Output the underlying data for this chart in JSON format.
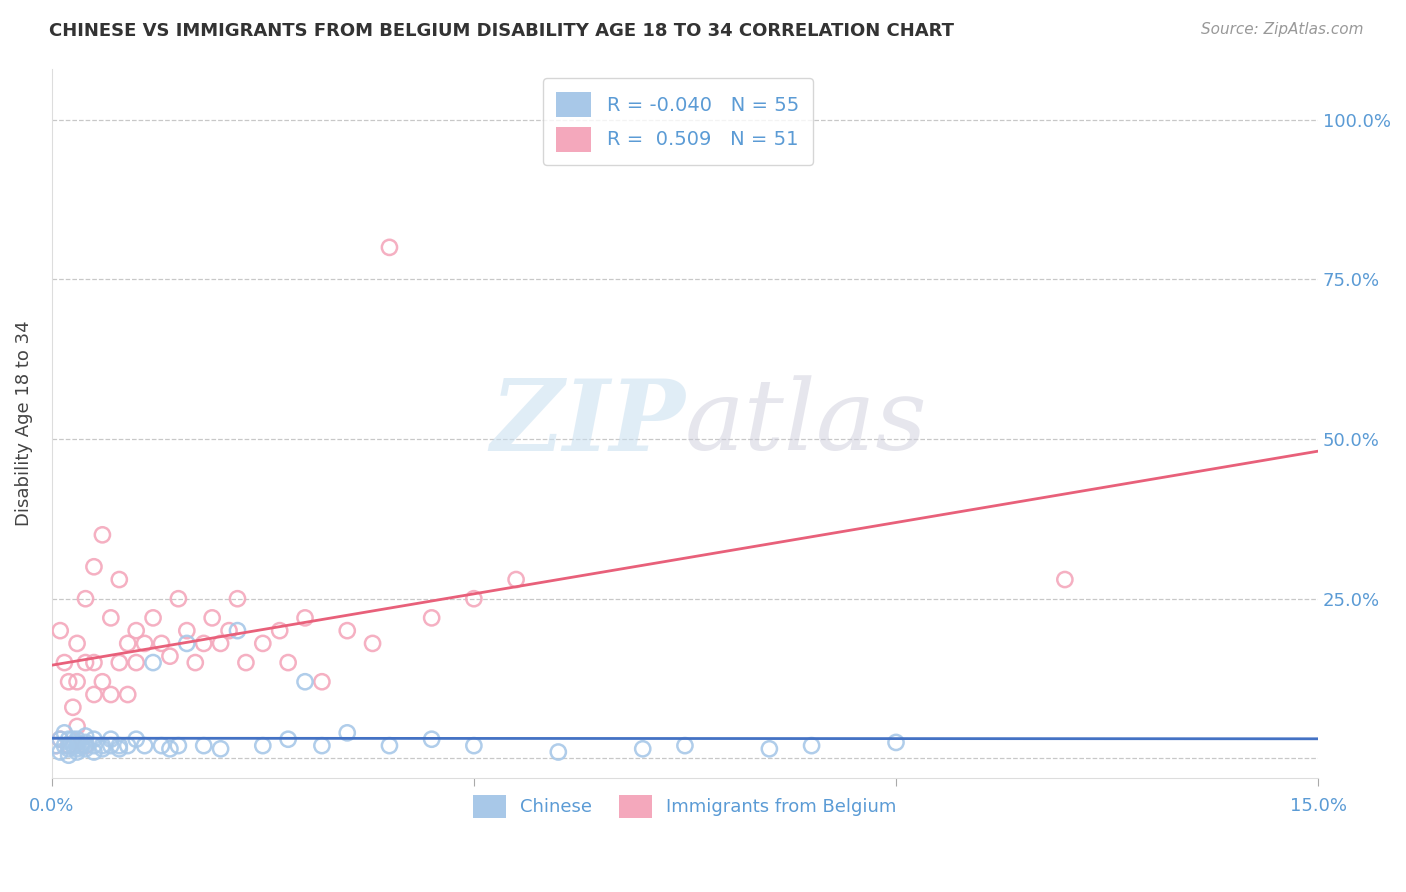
{
  "title": "CHINESE VS IMMIGRANTS FROM BELGIUM DISABILITY AGE 18 TO 34 CORRELATION CHART",
  "source": "Source: ZipAtlas.com",
  "ylabel": "Disability Age 18 to 34",
  "chinese_color": "#a8c8e8",
  "belgium_color": "#f4a8bc",
  "chinese_line_color": "#4472c4",
  "belgium_line_color": "#e8607a",
  "chinese_R": -0.04,
  "chinese_N": 55,
  "belgium_R": 0.509,
  "belgium_N": 51,
  "watermark_zip": "ZIP",
  "watermark_atlas": "atlas",
  "legend_chinese_label": "Chinese",
  "legend_belgium_label": "Immigrants from Belgium",
  "xmin": 0.0,
  "xmax": 0.15,
  "ymin": -0.03,
  "ymax": 1.08,
  "chinese_x": [
    0.0005,
    0.001,
    0.001,
    0.0015,
    0.0015,
    0.002,
    0.002,
    0.002,
    0.002,
    0.0025,
    0.0025,
    0.003,
    0.003,
    0.003,
    0.003,
    0.003,
    0.0035,
    0.004,
    0.004,
    0.004,
    0.004,
    0.005,
    0.005,
    0.005,
    0.006,
    0.006,
    0.007,
    0.007,
    0.008,
    0.008,
    0.009,
    0.01,
    0.011,
    0.012,
    0.013,
    0.014,
    0.015,
    0.016,
    0.018,
    0.02,
    0.022,
    0.025,
    0.028,
    0.03,
    0.032,
    0.035,
    0.04,
    0.045,
    0.05,
    0.06,
    0.07,
    0.075,
    0.085,
    0.09,
    0.1
  ],
  "chinese_y": [
    0.02,
    0.01,
    0.03,
    0.02,
    0.04,
    0.015,
    0.02,
    0.03,
    0.005,
    0.02,
    0.03,
    0.01,
    0.02,
    0.03,
    0.015,
    0.025,
    0.02,
    0.015,
    0.02,
    0.025,
    0.035,
    0.02,
    0.03,
    0.01,
    0.02,
    0.015,
    0.02,
    0.03,
    0.02,
    0.015,
    0.02,
    0.03,
    0.02,
    0.15,
    0.02,
    0.015,
    0.02,
    0.18,
    0.02,
    0.015,
    0.2,
    0.02,
    0.03,
    0.12,
    0.02,
    0.04,
    0.02,
    0.03,
    0.02,
    0.01,
    0.015,
    0.02,
    0.015,
    0.02,
    0.025
  ],
  "belgium_x": [
    0.0005,
    0.001,
    0.001,
    0.0015,
    0.002,
    0.002,
    0.0025,
    0.003,
    0.003,
    0.003,
    0.004,
    0.004,
    0.004,
    0.005,
    0.005,
    0.005,
    0.006,
    0.006,
    0.007,
    0.007,
    0.008,
    0.008,
    0.009,
    0.009,
    0.01,
    0.01,
    0.011,
    0.012,
    0.013,
    0.014,
    0.015,
    0.016,
    0.017,
    0.018,
    0.019,
    0.02,
    0.021,
    0.022,
    0.023,
    0.025,
    0.027,
    0.028,
    0.03,
    0.032,
    0.035,
    0.038,
    0.04,
    0.045,
    0.05,
    0.055,
    0.12
  ],
  "belgium_y": [
    0.02,
    0.2,
    0.03,
    0.15,
    0.02,
    0.12,
    0.08,
    0.05,
    0.12,
    0.18,
    0.02,
    0.15,
    0.25,
    0.1,
    0.15,
    0.3,
    0.35,
    0.12,
    0.1,
    0.22,
    0.15,
    0.28,
    0.1,
    0.18,
    0.15,
    0.2,
    0.18,
    0.22,
    0.18,
    0.16,
    0.25,
    0.2,
    0.15,
    0.18,
    0.22,
    0.18,
    0.2,
    0.25,
    0.15,
    0.18,
    0.2,
    0.15,
    0.22,
    0.12,
    0.2,
    0.18,
    0.8,
    0.22,
    0.25,
    0.28,
    0.28
  ]
}
